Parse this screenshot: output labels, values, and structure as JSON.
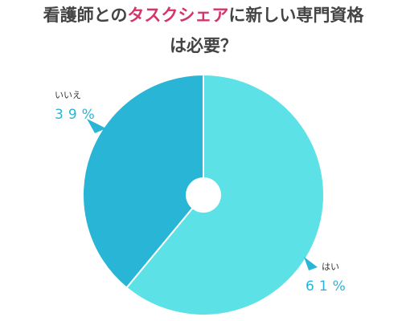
{
  "chart_data": {
    "type": "pie",
    "title": {
      "line1": [
        "看護師との",
        "タスクシェア",
        "に新しい専門資格"
      ],
      "line2": "は必要？"
    },
    "title_highlight_color": "#d6336c",
    "categories": [
      "はい",
      "いいえ"
    ],
    "values": [
      61,
      39
    ],
    "value_labels": [
      "61%",
      "39%"
    ],
    "colors": [
      "#5ce1e6",
      "#29b5d6"
    ]
  }
}
